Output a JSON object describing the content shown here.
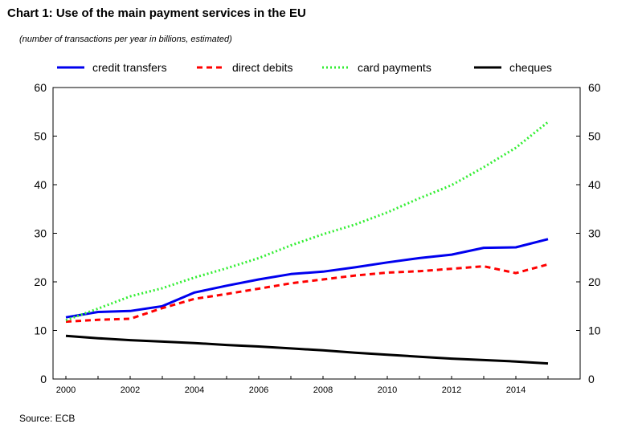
{
  "header": {
    "title": "Chart 1: Use of the main payment services in the EU",
    "subtitle": "(number of transactions per year in billions, estimated)"
  },
  "footer": {
    "source": "Source: ECB"
  },
  "chart_data": {
    "type": "line",
    "title": "Chart 1: Use of the main payment services in the EU",
    "subtitle": "(number of transactions per year in billions, estimated)",
    "x": [
      2000,
      2001,
      2002,
      2003,
      2004,
      2005,
      2006,
      2007,
      2008,
      2009,
      2010,
      2011,
      2012,
      2013,
      2014,
      2015
    ],
    "x_ticks": [
      2000,
      2002,
      2004,
      2006,
      2008,
      2010,
      2012,
      2014
    ],
    "y_ticks": [
      0,
      10,
      20,
      30,
      40,
      50,
      60
    ],
    "xlim": [
      1999.6,
      2016.0
    ],
    "ylim": [
      0,
      60
    ],
    "right_axis_mirror": true,
    "grid": false,
    "legend_position": "top",
    "series": [
      {
        "name": "credit transfers",
        "color": "#0000ee",
        "style": "solid",
        "values": [
          12.7,
          13.8,
          14.0,
          15.0,
          17.8,
          19.2,
          20.5,
          21.6,
          22.1,
          23.0,
          24.0,
          24.9,
          25.6,
          27.0,
          27.1,
          28.8
        ]
      },
      {
        "name": "direct debits",
        "color": "#ff0000",
        "style": "dashed",
        "values": [
          11.8,
          12.2,
          12.4,
          14.6,
          16.5,
          17.5,
          18.6,
          19.7,
          20.5,
          21.3,
          21.9,
          22.2,
          22.7,
          23.2,
          21.8,
          23.6
        ]
      },
      {
        "name": "card payments",
        "color": "#33ee33",
        "style": "dotted",
        "values": [
          12.1,
          14.5,
          17.0,
          18.7,
          20.9,
          22.8,
          24.9,
          27.5,
          29.8,
          31.8,
          34.3,
          37.2,
          39.9,
          43.6,
          47.6,
          52.9
        ]
      },
      {
        "name": "cheques",
        "color": "#000000",
        "style": "solid",
        "values": [
          8.9,
          8.4,
          8.0,
          7.7,
          7.4,
          7.0,
          6.7,
          6.3,
          5.9,
          5.4,
          5.0,
          4.6,
          4.2,
          3.9,
          3.6,
          3.2
        ]
      }
    ]
  }
}
